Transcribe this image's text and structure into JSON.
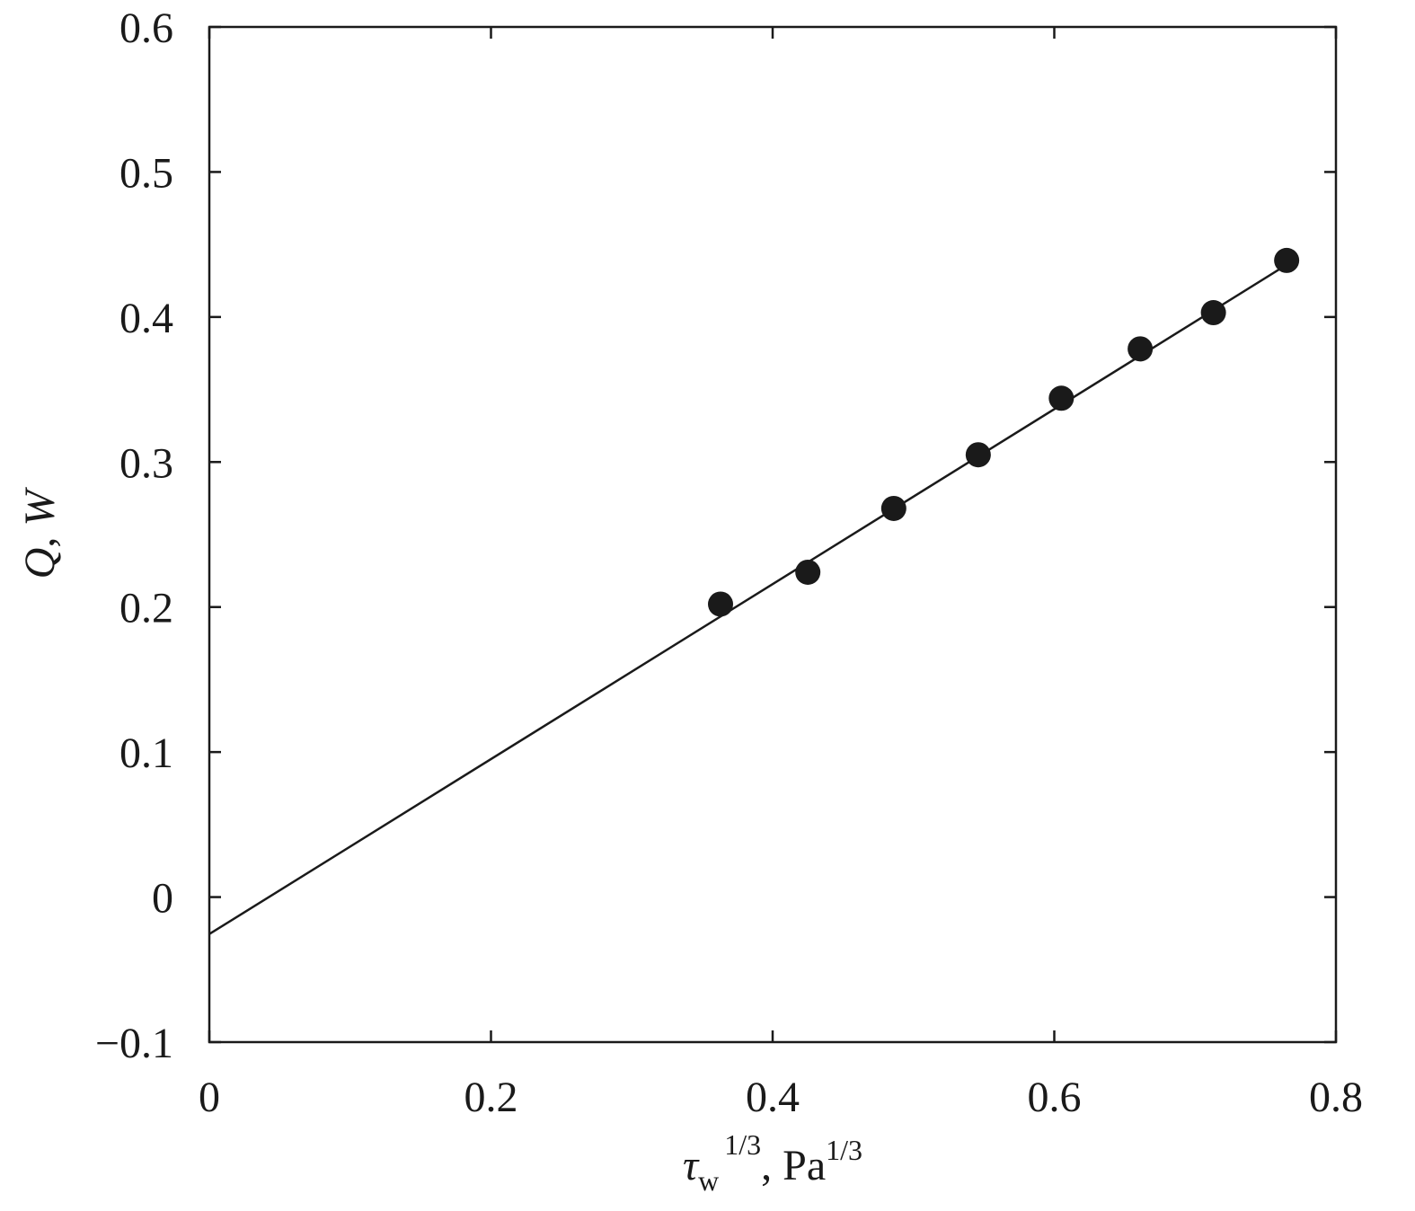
{
  "chart_data": {
    "type": "scatter",
    "xlabel": {
      "main": "τ",
      "sub": "w",
      "sup": "1/3",
      "sep": ", ",
      "unit": "Pa",
      "unit_sup": "1/3"
    },
    "ylabel": {
      "main": "Q",
      "sep": ", ",
      "unit": "W"
    },
    "xlim": [
      0,
      0.8
    ],
    "ylim": [
      -0.1,
      0.6
    ],
    "x_ticks": [
      0,
      0.2,
      0.4,
      0.6,
      0.8
    ],
    "x_tick_labels": [
      "0",
      "0.2",
      "0.4",
      "0.6",
      "0.8"
    ],
    "y_ticks": [
      -0.1,
      0,
      0.1,
      0.2,
      0.3,
      0.4,
      0.5,
      0.6
    ],
    "y_tick_labels": [
      "−0.1",
      "0",
      "0.1",
      "0.2",
      "0.3",
      "0.4",
      "0.5",
      "0.6"
    ],
    "grid": false,
    "series": [
      {
        "marker": "filled-circle",
        "color": "#1a1a1a",
        "points": [
          {
            "x": 0.363,
            "y": 0.202
          },
          {
            "x": 0.425,
            "y": 0.224
          },
          {
            "x": 0.486,
            "y": 0.268
          },
          {
            "x": 0.546,
            "y": 0.305
          },
          {
            "x": 0.605,
            "y": 0.344
          },
          {
            "x": 0.661,
            "y": 0.378
          },
          {
            "x": 0.713,
            "y": 0.403
          },
          {
            "x": 0.765,
            "y": 0.439
          }
        ]
      }
    ],
    "fit_line": {
      "color": "#1a1a1a",
      "points": [
        {
          "x": 0,
          "y": -0.0255
        },
        {
          "x": 0.765,
          "y": 0.436
        }
      ]
    }
  }
}
